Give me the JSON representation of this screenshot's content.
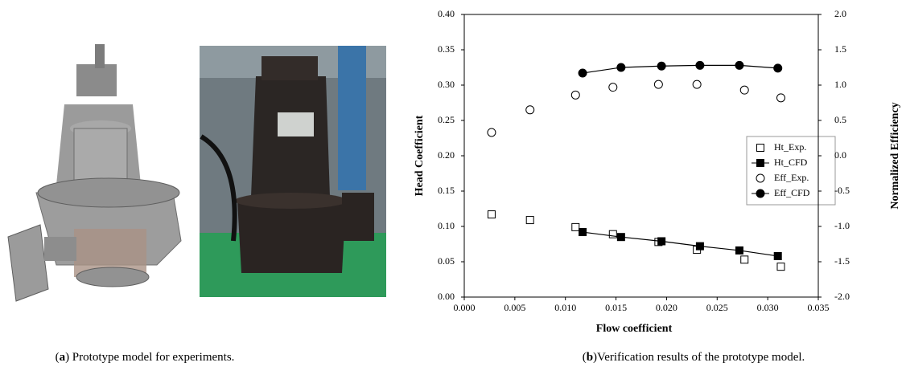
{
  "chart_data": {
    "type": "scatter",
    "xlabel": "Flow coefficient",
    "ylabel": "Head Coefficient",
    "y2label": "Normalized Efficiency",
    "xlim": [
      0,
      0.035
    ],
    "ylim": [
      0,
      0.4
    ],
    "y2lim": [
      -2,
      2
    ],
    "xticks": [
      {
        "value": 0,
        "label": "0.000"
      },
      {
        "value": 0.005,
        "label": "0.005"
      },
      {
        "value": 0.01,
        "label": "0.010"
      },
      {
        "value": 0.015,
        "label": "0.015"
      },
      {
        "value": 0.02,
        "label": "0.020"
      },
      {
        "value": 0.025,
        "label": "0.025"
      },
      {
        "value": 0.03,
        "label": "0.030"
      },
      {
        "value": 0.035,
        "label": "0.035"
      }
    ],
    "yticks": [
      {
        "value": 0,
        "label": "0.00"
      },
      {
        "value": 0.05,
        "label": "0.05"
      },
      {
        "value": 0.1,
        "label": "0.10"
      },
      {
        "value": 0.15,
        "label": "0.15"
      },
      {
        "value": 0.2,
        "label": "0.20"
      },
      {
        "value": 0.25,
        "label": "0.25"
      },
      {
        "value": 0.3,
        "label": "0.30"
      },
      {
        "value": 0.35,
        "label": "0.35"
      },
      {
        "value": 0.4,
        "label": "0.40"
      }
    ],
    "y2ticks": [
      {
        "value": -2,
        "label": "-2.0"
      },
      {
        "value": -1.5,
        "label": "-1.5"
      },
      {
        "value": -1,
        "label": "-1.0"
      },
      {
        "value": -0.5,
        "label": "-0.5"
      },
      {
        "value": 0,
        "label": "0.0"
      },
      {
        "value": 0.5,
        "label": "0.5"
      },
      {
        "value": 1,
        "label": "1.0"
      },
      {
        "value": 1.5,
        "label": "1.5"
      },
      {
        "value": 2,
        "label": "2.0"
      }
    ],
    "legend": "right",
    "series": [
      {
        "name": "Ht_Exp.",
        "color": "#000000",
        "marker": "square",
        "filled": false,
        "line": false,
        "x": [
          0.0027,
          0.0065,
          0.011,
          0.0147,
          0.0192,
          0.023,
          0.0277,
          0.0313
        ],
        "values": [
          0.117,
          0.109,
          0.099,
          0.089,
          0.078,
          0.067,
          0.053,
          0.043
        ]
      },
      {
        "name": "Ht_CFD",
        "color": "#000000",
        "marker": "square",
        "filled": true,
        "line": true,
        "x": [
          0.0117,
          0.0155,
          0.0195,
          0.0233,
          0.0272,
          0.031
        ],
        "values": [
          0.092,
          0.085,
          0.079,
          0.072,
          0.066,
          0.058
        ]
      },
      {
        "name": "Eff_Exp.",
        "color": "#000000",
        "marker": "circle",
        "filled": false,
        "line": false,
        "axis": "y2",
        "x": [
          0.0027,
          0.0065,
          0.011,
          0.0147,
          0.0192,
          0.023,
          0.0277,
          0.0313
        ],
        "values": [
          0.33,
          0.65,
          0.86,
          0.97,
          1.01,
          1.01,
          0.93,
          0.82
        ]
      },
      {
        "name": "Eff_CFD",
        "color": "#000000",
        "marker": "circle",
        "filled": true,
        "line": true,
        "axis": "y2",
        "x": [
          0.0117,
          0.0155,
          0.0195,
          0.0233,
          0.0272,
          0.031
        ],
        "values": [
          1.17,
          1.25,
          1.27,
          1.28,
          1.28,
          1.24
        ]
      }
    ]
  },
  "captions": [
    [
      "(",
      "a",
      ") Prototype model for experiments."
    ],
    [
      "(",
      "b",
      ")Verification results of the prototype model."
    ]
  ]
}
